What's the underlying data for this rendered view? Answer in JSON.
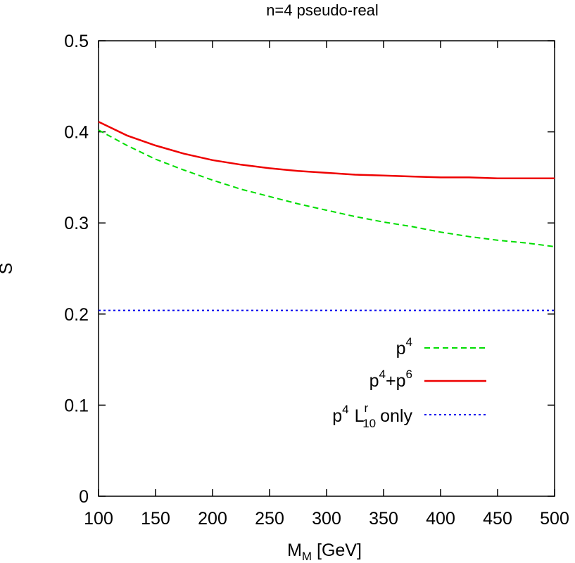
{
  "chart_data": {
    "type": "line",
    "title": "n=4 pseudo-real",
    "xlabel": {
      "main": "M",
      "sub": "M",
      "unit": "[GeV]"
    },
    "ylabel": "S",
    "xlim": [
      100,
      500
    ],
    "ylim": [
      0,
      0.5
    ],
    "xticks": [
      100,
      150,
      200,
      250,
      300,
      350,
      400,
      450,
      500
    ],
    "yticks": [
      0,
      0.1,
      0.2,
      0.3,
      0.4,
      0.5
    ],
    "xtick_labels": [
      "100",
      "150",
      "200",
      "250",
      "300",
      "350",
      "400",
      "450",
      "500"
    ],
    "ytick_labels": [
      "0",
      "0.1",
      "0.2",
      "0.3",
      "0.4",
      "0.5"
    ],
    "grid": false,
    "legend_position": "bottom-right",
    "series": [
      {
        "name": "p4",
        "legend": {
          "base": "p",
          "sup": "4"
        },
        "color": "#00dd00",
        "style": "dashed",
        "x": [
          100,
          125,
          150,
          175,
          200,
          225,
          250,
          275,
          300,
          325,
          350,
          375,
          400,
          425,
          450,
          475,
          500
        ],
        "y": [
          0.402,
          0.385,
          0.37,
          0.358,
          0.347,
          0.337,
          0.329,
          0.321,
          0.314,
          0.307,
          0.301,
          0.296,
          0.29,
          0.285,
          0.281,
          0.278,
          0.274
        ]
      },
      {
        "name": "p4+p6",
        "legend": {
          "base1": "p",
          "sup1": "4",
          "mid": "+p",
          "sup2": "6"
        },
        "color": "#ee0000",
        "style": "solid",
        "x": [
          100,
          125,
          150,
          175,
          200,
          225,
          250,
          275,
          300,
          325,
          350,
          375,
          400,
          425,
          450,
          475,
          500
        ],
        "y": [
          0.411,
          0.396,
          0.385,
          0.376,
          0.369,
          0.364,
          0.36,
          0.357,
          0.355,
          0.353,
          0.352,
          0.351,
          0.35,
          0.35,
          0.349,
          0.349,
          0.349
        ]
      },
      {
        "name": "p4 L10r only",
        "legend": {
          "base": "p",
          "sup": "4",
          "l": "L",
          "lsup": "r",
          "lsub": "10",
          "tail": "only"
        },
        "color": "#0000ee",
        "style": "dotted",
        "x": [
          100,
          500
        ],
        "y": [
          0.204,
          0.204
        ]
      }
    ]
  }
}
